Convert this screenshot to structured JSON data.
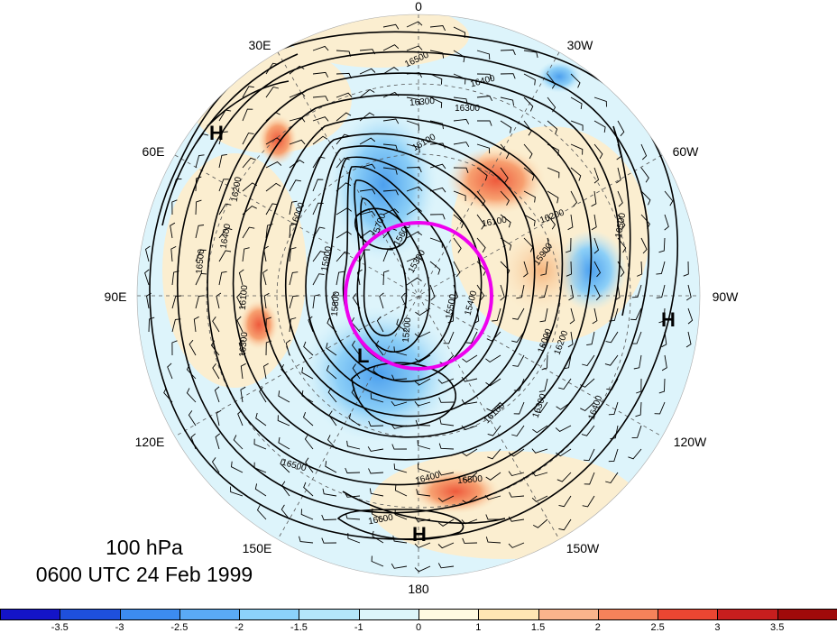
{
  "map": {
    "longitude_labels": [
      "0",
      "30W",
      "60W",
      "90W",
      "120W",
      "150W",
      "180",
      "150E",
      "120E",
      "90E",
      "60E",
      "30E"
    ],
    "contour_labels": [
      "16500",
      "16400",
      "16300",
      "16300",
      "16100",
      "16200",
      "16100",
      "16200",
      "16000",
      "15900",
      "15800",
      "15700",
      "15600",
      "15500",
      "15400",
      "15300",
      "15200",
      "16100",
      "16300",
      "16400",
      "16500",
      "16600",
      "16500",
      "16400",
      "16000",
      "16100",
      "15900",
      "16300",
      "16200",
      "16500",
      "16400",
      "16500"
    ],
    "pressure_systems": [
      {
        "type": "H",
        "label": "H"
      },
      {
        "type": "H",
        "label": "H"
      },
      {
        "type": "H",
        "label": "H"
      },
      {
        "type": "L",
        "label": "L"
      }
    ],
    "highlight_circle_color": "#ee00ee"
  },
  "caption": {
    "level": "100 hPa",
    "datetime": "0600 UTC 24 Feb 1999"
  },
  "colorbar": {
    "tick_labels": [
      "-3.5",
      "-3",
      "-2.5",
      "-2",
      "-1.5",
      "-1",
      "0",
      "1",
      "1.5",
      "2",
      "2.5",
      "3",
      "3.5"
    ],
    "colors": [
      "#1414c8",
      "#1e50dc",
      "#3c8cf0",
      "#5aaaf5",
      "#8cd2fa",
      "#b4e6fa",
      "#dcf5fa",
      "#fffae1",
      "#ffe6b4",
      "#fab48c",
      "#f5825a",
      "#eb4632",
      "#c81e1e",
      "#a00a0a"
    ]
  }
}
